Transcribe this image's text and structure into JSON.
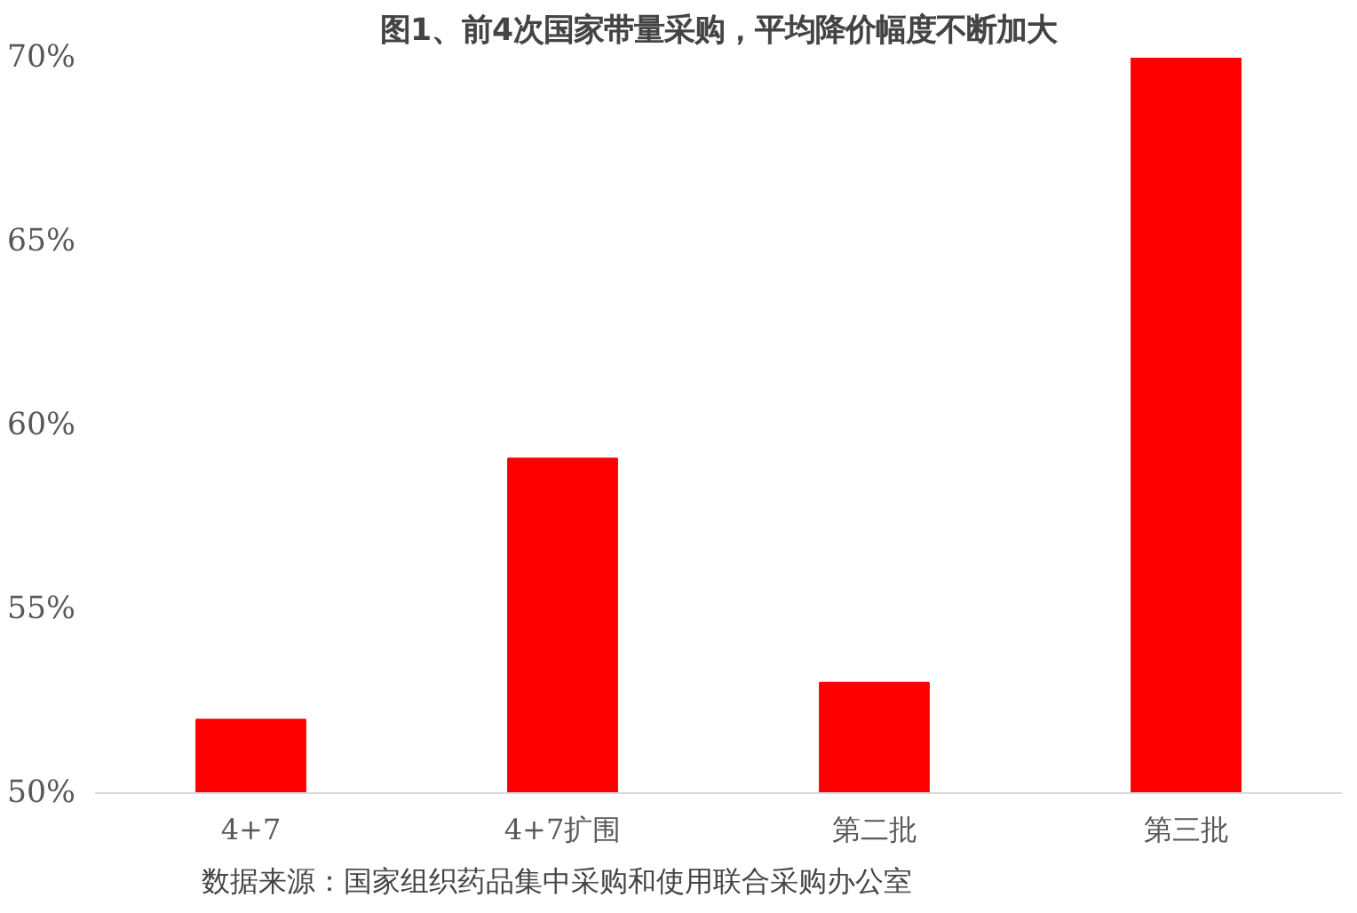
{
  "chart_data": {
    "type": "bar",
    "title": "图1、前4次国家带量采购，平均降价幅度不断加大",
    "categories": [
      "4+7",
      "4+7扩围",
      "第二批",
      "第三批"
    ],
    "values": [
      52,
      59.1,
      53,
      70
    ],
    "color": "#ff0000",
    "ylim": [
      50,
      70
    ],
    "yticks": [
      {
        "value": 50,
        "label": "50%"
      },
      {
        "value": 55,
        "label": "55%"
      },
      {
        "value": 60,
        "label": "60%"
      },
      {
        "value": 65,
        "label": "65%"
      },
      {
        "value": 70,
        "label": "70%"
      }
    ],
    "grid": false,
    "annotations": [
      "数据来源：国家组织药品集中采购和使用联合采购办公室"
    ]
  }
}
